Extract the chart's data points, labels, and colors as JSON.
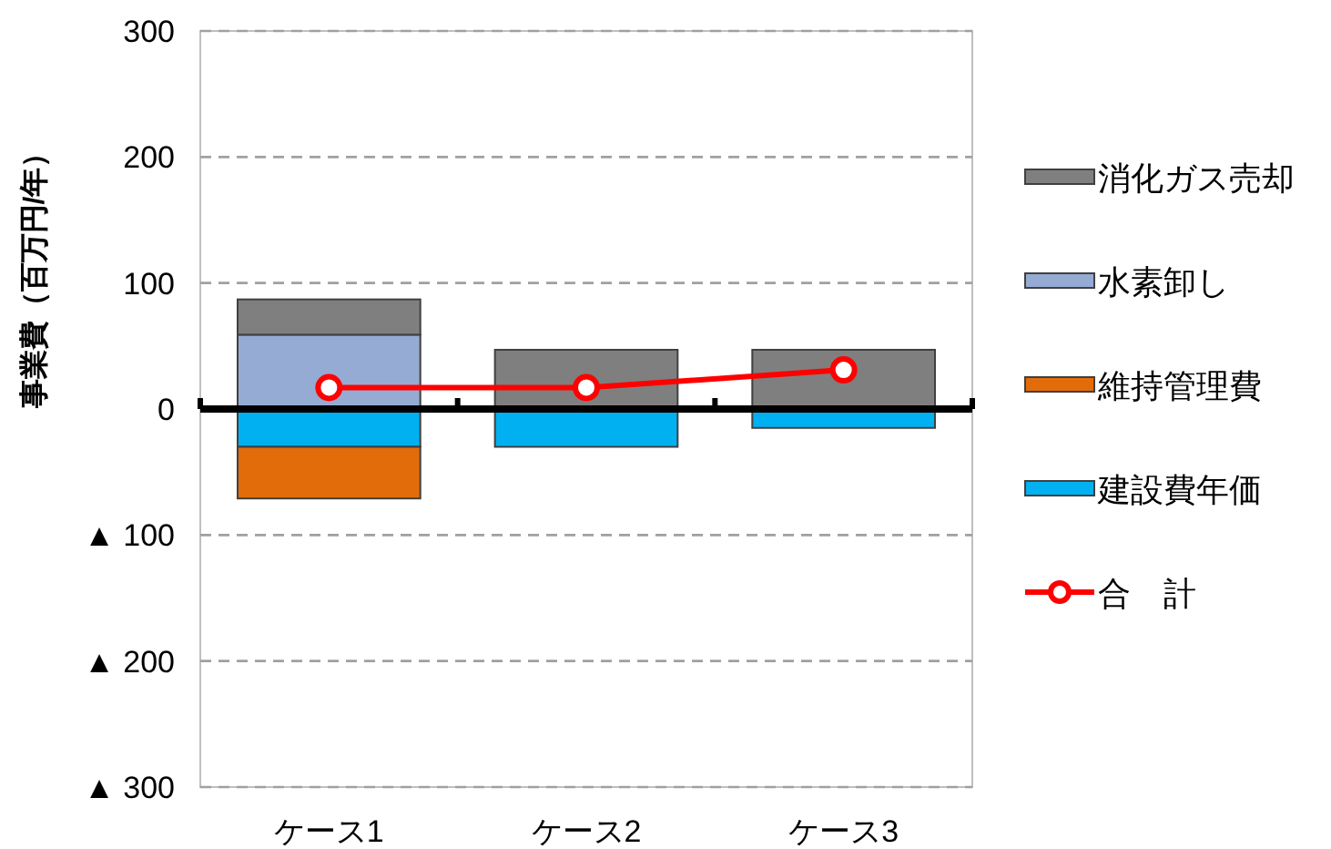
{
  "chart_data": {
    "type": "bar",
    "stacked": true,
    "ylabel": "事業費（百万円/年）",
    "categories": [
      "ケース1",
      "ケース2",
      "ケース3"
    ],
    "series": [
      {
        "name": "建設費年価",
        "color": "#00b0f0",
        "values": [
          -30,
          -30,
          -15
        ]
      },
      {
        "name": "維持管理費",
        "color": "#e36c0a",
        "values": [
          -41,
          0,
          0
        ]
      },
      {
        "name": "水素卸し",
        "color": "#95abd3",
        "values": [
          59,
          0,
          0
        ]
      },
      {
        "name": "消化ガス売却",
        "color": "#7f7f7f",
        "values": [
          28,
          47,
          47
        ]
      },
      {
        "name": "合　計",
        "type": "line",
        "color": "#ff0000",
        "marker": "circle",
        "values": [
          17,
          17,
          31
        ]
      }
    ],
    "ylim": [
      -300,
      300
    ],
    "yticks": [
      {
        "value": -300,
        "label": "▲ 300"
      },
      {
        "value": -200,
        "label": "▲ 200"
      },
      {
        "value": -100,
        "label": "▲ 100"
      },
      0,
      100,
      200,
      300
    ],
    "grid": "y",
    "legend": "right"
  }
}
